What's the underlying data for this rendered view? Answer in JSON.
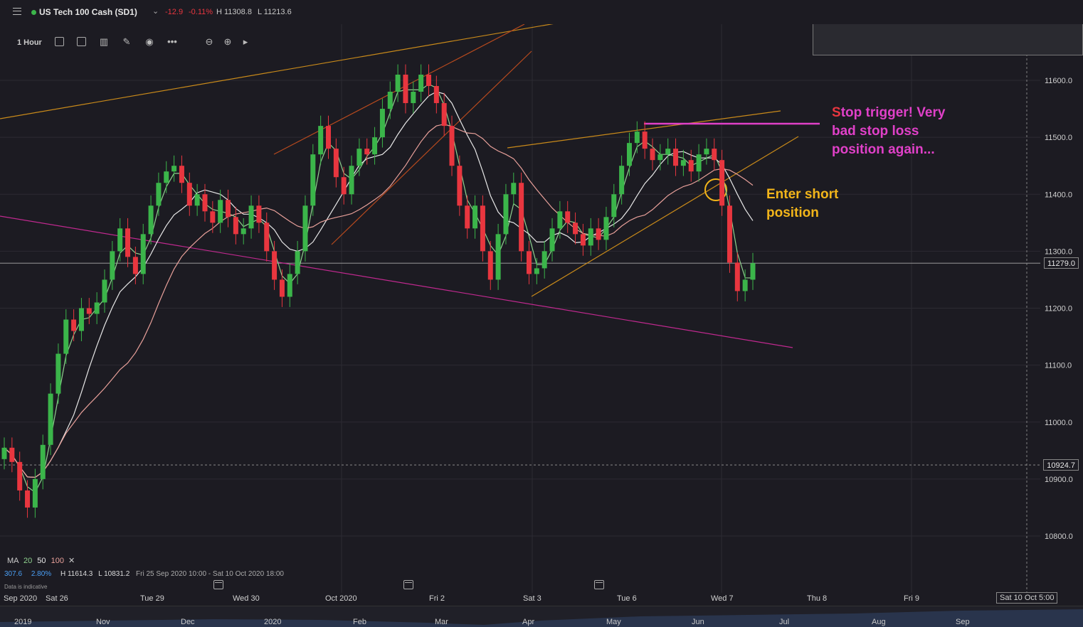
{
  "header": {
    "instrument": "US Tech 100 Cash (SD1)",
    "change": "-12.9",
    "change_pct": "-0.11%",
    "high": "H 11308.8",
    "low": "L 11213.6",
    "status_color": "#3bb54a",
    "down_color": "#e8363f"
  },
  "toolbar": {
    "timeframe": "1 Hour",
    "icons": [
      "chart-type-icon",
      "template-icon",
      "indicators-icon",
      "drawing-icon",
      "visibility-icon",
      "more-icon",
      "zoom-out-icon",
      "zoom-in-icon",
      "play-icon"
    ]
  },
  "price_axis": {
    "labels": [
      "11600.0",
      "11500.0",
      "11400.0",
      "11300.0",
      "11200.0",
      "11100.0",
      "11000.0",
      "10900.0",
      "10800.0"
    ],
    "current_price": "11279.0",
    "marked_price": "10924.7"
  },
  "legend": {
    "ma_label": "MA",
    "ma_periods": [
      "20",
      "50",
      "100"
    ],
    "close_symbol": "✕",
    "val1": "307.6",
    "val2": "2.80%",
    "high": "H 11614.3",
    "low": "L 10831.2",
    "range": "Fri 25 Sep 2020 10:00 - Sat 10 Oct 2020 18:00",
    "note": "Data is indicative"
  },
  "annotations": {
    "stop_first_letter": "S",
    "stop_line1_rest": "top trigger! Very",
    "stop_line2": "bad stop loss",
    "stop_line3": "position again...",
    "enter_line1": "Enter short",
    "enter_line2": "position",
    "stop_color": "#e8363f",
    "stop_text_color": "#e040c8",
    "enter_color": "#f2b51a"
  },
  "date_axis": [
    "Sep 2020",
    "Sat 26",
    "Tue 29",
    "Wed 30",
    "Oct 2020",
    "Fri 2",
    "Sat 3",
    "Tue 6",
    "Wed 7",
    "Thu 8",
    "Fri 9",
    "Sat 10 Oct 5:00"
  ],
  "navigator": [
    "2019",
    "Nov",
    "Dec",
    "2020",
    "Feb",
    "Mar",
    "Apr",
    "May",
    "Jun",
    "Jul",
    "Aug",
    "Sep"
  ],
  "chart_data": {
    "type": "candlestick",
    "instrument": "US Tech 100 Cash (SD1)",
    "interval": "1 Hour",
    "ylim": [
      10750,
      11700
    ],
    "up_color": "#3bb54a",
    "down_color": "#e8363f",
    "grid": true,
    "ma_periods": [
      20,
      50,
      100
    ],
    "ma_colors": [
      "#8fd18f",
      "#e8e8e8",
      "#e8a09a"
    ],
    "close_series": [
      10955,
      10930,
      10880,
      10850,
      10900,
      10960,
      11050,
      11120,
      11180,
      11160,
      11200,
      11190,
      11210,
      11250,
      11300,
      11340,
      11290,
      11260,
      11330,
      11380,
      11420,
      11440,
      11450,
      11420,
      11380,
      11400,
      11370,
      11350,
      11390,
      11360,
      11330,
      11340,
      11380,
      11350,
      11300,
      11250,
      11220,
      11260,
      11300,
      11380,
      11470,
      11520,
      11480,
      11430,
      11400,
      11450,
      11480,
      11470,
      11500,
      11550,
      11580,
      11610,
      11560,
      11580,
      11610,
      11590,
      11560,
      11520,
      11450,
      11380,
      11340,
      11380,
      11300,
      11250,
      11330,
      11400,
      11420,
      11300,
      11260,
      11270,
      11300,
      11340,
      11370,
      11350,
      11330,
      11310,
      11340,
      11320,
      11360,
      11400,
      11450,
      11490,
      11510,
      11480,
      11460,
      11470,
      11480,
      11450,
      11460,
      11440,
      11470,
      11480,
      11460,
      11380,
      11280,
      11230,
      11250,
      11279
    ]
  }
}
